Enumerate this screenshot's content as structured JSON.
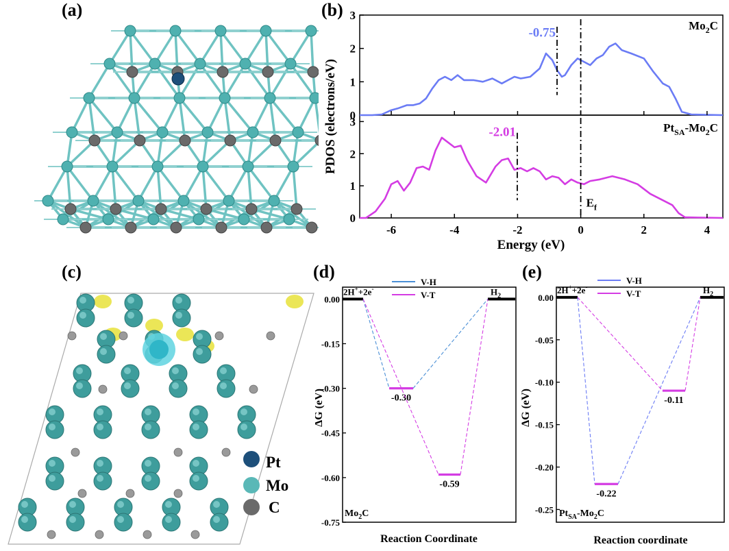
{
  "figure": {
    "labels": {
      "a": "(a)",
      "b": "(b)",
      "c": "(c)",
      "d": "(d)",
      "e": "(e)"
    }
  },
  "legend_c": {
    "items": [
      {
        "label": "Pt",
        "color": "#1d4f7a"
      },
      {
        "label": "Mo",
        "color": "#5ab8b7"
      },
      {
        "label": "C",
        "color": "#6a6a6a"
      }
    ]
  },
  "chart_data": [
    {
      "id": "b",
      "type": "line",
      "xlabel": "Energy (eV)",
      "ylabel": "PDOS (electrons/eV)",
      "xlim": [
        -7,
        4.5
      ],
      "xticks": [
        "-6",
        "-4",
        "-2",
        "0",
        "2",
        "4"
      ],
      "subplots": [
        {
          "name": "Mo2C",
          "name_main": "Mo",
          "name_sub": "2",
          "name_end": "C",
          "color": "#6b7cf5",
          "ylim": [
            0,
            3
          ],
          "yticks": [
            "0",
            "1",
            "2",
            "3"
          ],
          "center_value": "-0.75",
          "center_x": -0.75,
          "x": [
            -7,
            -6.6,
            -6.3,
            -6,
            -5.8,
            -5.5,
            -5.3,
            -5.1,
            -4.9,
            -4.7,
            -4.5,
            -4.3,
            -4.1,
            -3.9,
            -3.7,
            -3.4,
            -3.1,
            -2.8,
            -2.5,
            -2.3,
            -2.1,
            -1.9,
            -1.6,
            -1.3,
            -1.1,
            -0.9,
            -0.75,
            -0.6,
            -0.5,
            -0.3,
            -0.1,
            0.1,
            0.3,
            0.5,
            0.7,
            0.9,
            1.1,
            1.3,
            1.6,
            2,
            2.3,
            2.6,
            2.8,
            3,
            3.2,
            3.5,
            4.5
          ],
          "y": [
            0,
            0,
            0.02,
            0.15,
            0.2,
            0.3,
            0.3,
            0.35,
            0.5,
            0.8,
            1.05,
            1.15,
            1.05,
            1.2,
            1.05,
            1.05,
            1,
            1.1,
            0.95,
            1.05,
            1.15,
            1.1,
            1.15,
            1.4,
            1.85,
            1.65,
            1.35,
            1.15,
            1.2,
            1.5,
            1.7,
            1.6,
            1.5,
            1.7,
            1.8,
            2.05,
            2.15,
            1.95,
            1.85,
            1.7,
            1.3,
            0.95,
            0.85,
            0.5,
            0.1,
            0.02,
            0
          ]
        },
        {
          "name": "PtSA-Mo2C",
          "name_main": "Pt",
          "name_sub": "SA",
          "name_end": "-Mo",
          "name_sub2": "2",
          "name_end2": "C",
          "color": "#d43ce3",
          "ylim": [
            0,
            3.2
          ],
          "yticks": [
            "0",
            "1",
            "2",
            "3"
          ],
          "center_value": "-2.01",
          "center_x": -2.01,
          "fermi_label": "E",
          "fermi_sub": "f",
          "x": [
            -7,
            -6.8,
            -6.5,
            -6.2,
            -6,
            -5.8,
            -5.6,
            -5.4,
            -5.2,
            -5,
            -4.8,
            -4.6,
            -4.4,
            -4.2,
            -4,
            -3.8,
            -3.6,
            -3.3,
            -3,
            -2.7,
            -2.5,
            -2.3,
            -2.1,
            -1.9,
            -1.7,
            -1.5,
            -1.3,
            -1.1,
            -0.9,
            -0.7,
            -0.5,
            -0.3,
            -0.1,
            0.1,
            0.3,
            0.6,
            1,
            1.4,
            1.8,
            2.2,
            2.6,
            2.9,
            3.1,
            3.3,
            4.5
          ],
          "y": [
            0,
            0,
            0.2,
            0.6,
            1.05,
            1.15,
            0.85,
            1.1,
            1.55,
            1.6,
            1.5,
            2.1,
            2.5,
            2.35,
            2.2,
            2.25,
            1.8,
            1.3,
            1.1,
            1.6,
            1.8,
            1.85,
            1.5,
            1.55,
            1.45,
            1.55,
            1.45,
            1.2,
            1.3,
            1.25,
            1.05,
            1.2,
            1.1,
            1.05,
            1.15,
            1.2,
            1.3,
            1.2,
            1.05,
            0.75,
            0.55,
            0.4,
            0.15,
            0.02,
            0
          ]
        }
      ]
    },
    {
      "id": "d",
      "type": "line",
      "title": "Mo2C",
      "title_main": "Mo",
      "title_sub": "2",
      "title_end": "C",
      "xlabel": "Reaction Coordinate",
      "ylabel": "ΔG (eV)",
      "ylim": [
        -0.75,
        0.04
      ],
      "yticks": [
        "0.00",
        "-0.15",
        "-0.30",
        "-0.45",
        "-0.60",
        "-0.75"
      ],
      "start_label": "2H",
      "start_sup": "+",
      "start_mid": "+2e",
      "start_sup2": "-",
      "end_label": "H",
      "end_sub": "2",
      "series": [
        {
          "name": "V-H",
          "color": "#4a8fd6",
          "intermediate": -0.3,
          "label": "-0.30"
        },
        {
          "name": "V-T",
          "color": "#d43ce3",
          "intermediate": -0.59,
          "label": "-0.59"
        }
      ],
      "note_h_level": "-0.30"
    },
    {
      "id": "e",
      "type": "line",
      "title": "PtSA-Mo2C",
      "title_main": "Pt",
      "title_sub": "SA",
      "title_end": "-Mo",
      "title_sub2": "2",
      "title_end2": "C",
      "xlabel": "Reaction coordinate",
      "ylabel": "ΔG (eV)",
      "ylim": [
        -0.265,
        0.012
      ],
      "yticks": [
        "0.00",
        "-0.05",
        "-0.10",
        "-0.15",
        "-0.20",
        "-0.25"
      ],
      "start_label": "2H",
      "start_sup": "+",
      "start_mid": "+2e",
      "start_sup2": "-",
      "end_label": "H",
      "end_sub": "2",
      "series": [
        {
          "name": "V-H",
          "color": "#6b7cf5",
          "intermediate": -0.22,
          "label": "-0.22"
        },
        {
          "name": "V-T",
          "color": "#d43ce3",
          "intermediate": -0.11,
          "label": "-0.11"
        }
      ]
    }
  ]
}
